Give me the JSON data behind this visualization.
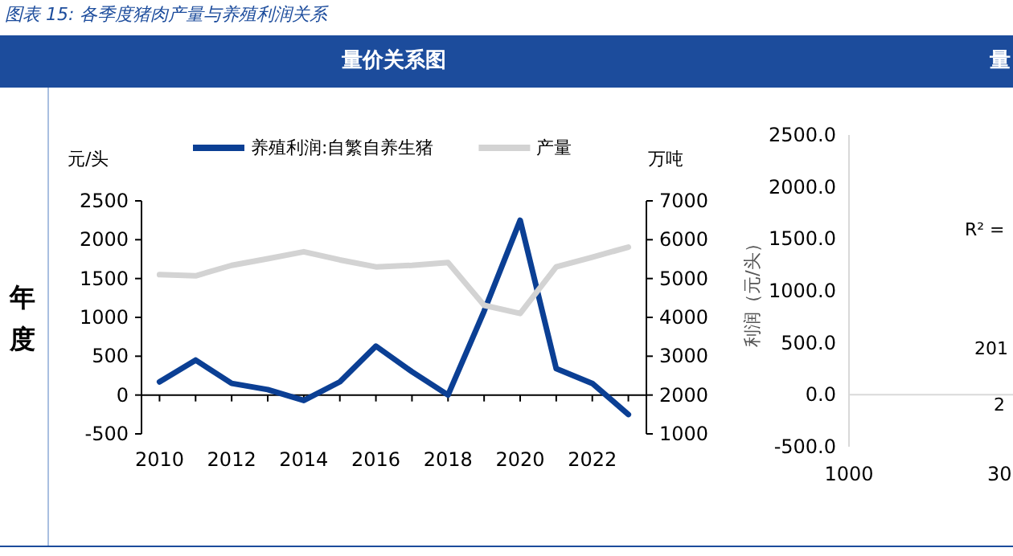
{
  "chart_data": [
    {
      "type": "line",
      "title": "图表 15: 各季度猪肉产量与养殖利润关系",
      "subtitle": "量价关系图",
      "annotations": [
        "年度"
      ],
      "ylabel": "元/头",
      "y2label": "万吨",
      "legend": "top",
      "marker": "none",
      "line_style": "solid",
      "x": [
        2010,
        2011,
        2012,
        2013,
        2014,
        2015,
        2016,
        2017,
        2018,
        2019,
        2020,
        2021,
        2022,
        2023
      ],
      "xlim": [
        2009.5,
        2023.5
      ],
      "xticks": [
        2010,
        2012,
        2014,
        2016,
        2018,
        2020,
        2022
      ],
      "ylim": [
        -500,
        2500
      ],
      "yticks": [
        -500,
        0,
        500,
        1000,
        1500,
        2000,
        2500
      ],
      "y2lim": [
        1000,
        7000
      ],
      "y2ticks": [
        1000,
        2000,
        3000,
        4000,
        5000,
        6000,
        7000
      ],
      "series": [
        {
          "name": "养殖利润:自繁自养生猪",
          "color": "#0b3f94",
          "values": [
            170,
            450,
            150,
            70,
            -70,
            170,
            630,
            300,
            0,
            1080,
            2250,
            340,
            150,
            -250
          ]
        },
        {
          "name": "产量",
          "color": "#d3d3d3",
          "axis": "y2",
          "values": [
            5100,
            5070,
            5340,
            5510,
            5690,
            5480,
            5300,
            5340,
            5410,
            4310,
            4100,
            5300,
            5550,
            5810
          ]
        }
      ]
    },
    {
      "type": "scatter",
      "subtitle": "量",
      "ylabel": "利润（元/头）",
      "annotations": [
        "R² =",
        "201",
        "2"
      ],
      "categories": [
        "1000",
        "30"
      ],
      "ylim": [
        -500,
        2500
      ],
      "yticks": [
        {
          "value": -500,
          "label": "-500.0"
        },
        {
          "value": 0,
          "label": "0.0"
        },
        {
          "value": 500,
          "label": "500.0"
        },
        {
          "value": 1000,
          "label": "1000.0"
        },
        {
          "value": 1500,
          "label": "1500.0"
        },
        {
          "value": 2000,
          "label": "2000.0"
        },
        {
          "value": 2500,
          "label": "2500.0"
        }
      ],
      "ref_lines": [
        {
          "axis": "y",
          "value": 0,
          "color": "#d9d9d9"
        }
      ]
    }
  ]
}
